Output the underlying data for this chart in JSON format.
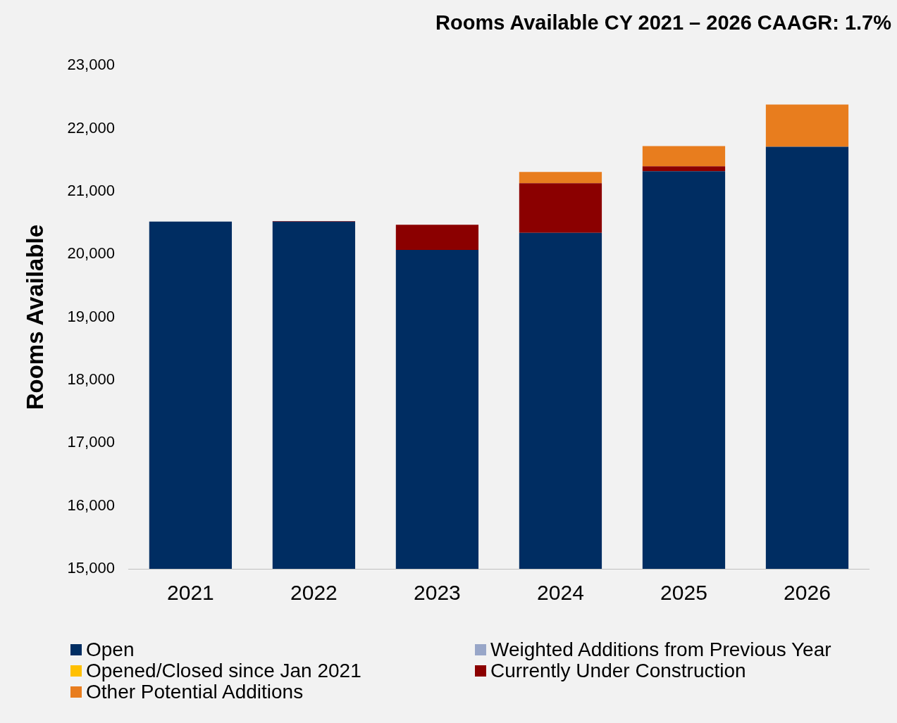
{
  "chart_data": {
    "type": "bar",
    "title": "Rooms Available CY 2021 – 2026 CAAGR: 1.7%",
    "ylabel": "Rooms Available",
    "categories": [
      "2021",
      "2022",
      "2023",
      "2024",
      "2025",
      "2026"
    ],
    "stacked": true,
    "series": [
      {
        "name": "Open",
        "color": "#002d62",
        "values": [
          20520,
          20520,
          20070,
          20340,
          21320,
          21710
        ]
      },
      {
        "name": "Weighted Additions from Previous Year",
        "color": "#98a6c8",
        "values": [
          null,
          null,
          null,
          null,
          null,
          null
        ]
      },
      {
        "name": "Opened/Closed since Jan 2021",
        "color": "#ffc000",
        "values": [
          null,
          null,
          null,
          null,
          null,
          null
        ]
      },
      {
        "name": "Currently Under Construction",
        "color": "#8b0000",
        "base": [
          null,
          20520,
          20070,
          20340,
          21320,
          null
        ],
        "values": [
          null,
          10,
          400,
          790,
          80,
          null
        ]
      },
      {
        "name": "Other Potential Additions",
        "color": "#e87d1e",
        "base": [
          null,
          null,
          null,
          21130,
          21400,
          21710
        ],
        "values": [
          null,
          null,
          null,
          180,
          320,
          670
        ]
      }
    ],
    "ylim": [
      15000,
      23000
    ],
    "yticks": [
      {
        "value": 15000,
        "label": "15,000"
      },
      {
        "value": 16000,
        "label": "16,000"
      },
      {
        "value": 17000,
        "label": "17,000"
      },
      {
        "value": 18000,
        "label": "18,000"
      },
      {
        "value": 19000,
        "label": "19,000"
      },
      {
        "value": 20000,
        "label": "20,000"
      },
      {
        "value": 21000,
        "label": "21,000"
      },
      {
        "value": 22000,
        "label": "22,000"
      },
      {
        "value": 23000,
        "label": "23,000"
      }
    ],
    "grid": false,
    "legend": "bottom"
  }
}
